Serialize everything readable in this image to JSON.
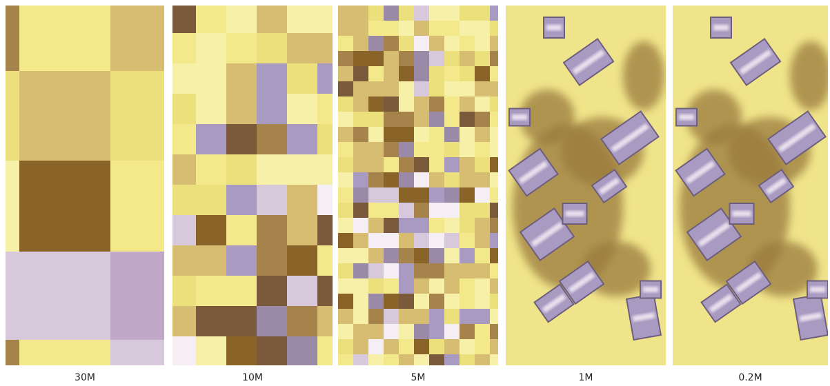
{
  "panels": [
    {
      "label": "30M"
    },
    {
      "label": "10M"
    },
    {
      "label": "5M"
    },
    {
      "label": "1M"
    },
    {
      "label": "0.2M"
    }
  ]
}
